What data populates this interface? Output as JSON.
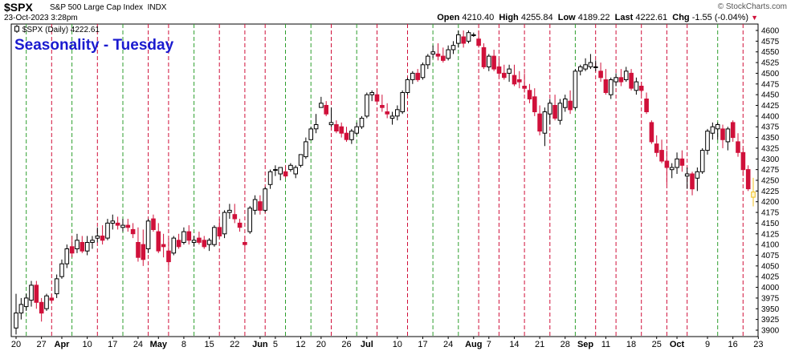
{
  "header": {
    "ticker": "$SPX",
    "description": "S&P 500 Large Cap Index",
    "exchange": "INDX",
    "timestamp": "23-Oct-2023 3:28pm",
    "copyright": "© StockCharts.com",
    "open_label": "Open",
    "open": "4210.40",
    "high_label": "High",
    "high": "4255.84",
    "low_label": "Low",
    "low": "4189.22",
    "last_label": "Last",
    "last": "4222.61",
    "chg_label": "Chg",
    "chg": "-1.55 (-0.04%)"
  },
  "legend": "$SPX (Daily) 4222.61",
  "overlay_title": "Seasonality - Tuesday",
  "colors": {
    "up": "#000000",
    "down": "#d0103a",
    "today": "#f0c020",
    "green_line": "#2e9e2e",
    "red_line": "#d0103a"
  },
  "chart_data": {
    "type": "candlestick",
    "y_axis": {
      "ticks": [
        3900,
        3925,
        3950,
        3975,
        4000,
        4025,
        4050,
        4075,
        4100,
        4125,
        4150,
        4175,
        4200,
        4225,
        4250,
        4275,
        4300,
        4325,
        4350,
        4375,
        4400,
        4425,
        4450,
        4475,
        4500,
        4525,
        4550,
        4575,
        4600
      ],
      "range": [
        3885,
        4615
      ]
    },
    "x_labels": [
      {
        "i": 0,
        "text": "20"
      },
      {
        "i": 5,
        "text": "27"
      },
      {
        "i": 9,
        "text": "Apr",
        "bold": true
      },
      {
        "i": 14,
        "text": "10"
      },
      {
        "i": 19,
        "text": "17"
      },
      {
        "i": 24,
        "text": "24"
      },
      {
        "i": 28,
        "text": "May",
        "bold": true
      },
      {
        "i": 33,
        "text": "8"
      },
      {
        "i": 38,
        "text": "15"
      },
      {
        "i": 43,
        "text": "22"
      },
      {
        "i": 48,
        "text": "Jun",
        "bold": true
      },
      {
        "i": 51,
        "text": "5"
      },
      {
        "i": 56,
        "text": "12"
      },
      {
        "i": 60,
        "text": "20"
      },
      {
        "i": 65,
        "text": "26"
      },
      {
        "i": 69,
        "text": "Jul",
        "bold": true
      },
      {
        "i": 75,
        "text": "10"
      },
      {
        "i": 80,
        "text": "17"
      },
      {
        "i": 85,
        "text": "24"
      },
      {
        "i": 90,
        "text": "Aug",
        "bold": true
      },
      {
        "i": 93,
        "text": "7"
      },
      {
        "i": 98,
        "text": "14"
      },
      {
        "i": 103,
        "text": "21"
      },
      {
        "i": 108,
        "text": "28"
      },
      {
        "i": 112,
        "text": "Sep",
        "bold": true
      },
      {
        "i": 116,
        "text": "11"
      },
      {
        "i": 121,
        "text": "18"
      },
      {
        "i": 126,
        "text": "25"
      },
      {
        "i": 130,
        "text": "Oct",
        "bold": true
      },
      {
        "i": 136,
        "text": "9"
      },
      {
        "i": 141,
        "text": "16"
      },
      {
        "i": 146,
        "text": "23"
      }
    ],
    "tuesday_markers": [
      {
        "i": 2,
        "color": "green"
      },
      {
        "i": 7,
        "color": "red"
      },
      {
        "i": 11,
        "color": "green"
      },
      {
        "i": 16,
        "color": "red"
      },
      {
        "i": 21,
        "color": "green"
      },
      {
        "i": 26,
        "color": "red"
      },
      {
        "i": 30,
        "color": "red"
      },
      {
        "i": 35,
        "color": "green"
      },
      {
        "i": 40,
        "color": "red"
      },
      {
        "i": 45,
        "color": "red"
      },
      {
        "i": 49,
        "color": "red"
      },
      {
        "i": 53,
        "color": "green"
      },
      {
        "i": 58,
        "color": "green"
      },
      {
        "i": 62,
        "color": "red"
      },
      {
        "i": 67,
        "color": "green"
      },
      {
        "i": 71,
        "color": "red"
      },
      {
        "i": 77,
        "color": "red"
      },
      {
        "i": 82,
        "color": "green"
      },
      {
        "i": 87,
        "color": "green"
      },
      {
        "i": 91,
        "color": "red"
      },
      {
        "i": 95,
        "color": "red"
      },
      {
        "i": 100,
        "color": "red"
      },
      {
        "i": 105,
        "color": "red"
      },
      {
        "i": 110,
        "color": "green"
      },
      {
        "i": 114,
        "color": "red"
      },
      {
        "i": 118,
        "color": "red"
      },
      {
        "i": 123,
        "color": "red"
      },
      {
        "i": 128,
        "color": "red"
      },
      {
        "i": 132,
        "color": "red"
      },
      {
        "i": 138,
        "color": "green"
      },
      {
        "i": 143,
        "color": "red"
      }
    ],
    "ohlc": [
      [
        3905,
        3985,
        3890,
        3940
      ],
      [
        3940,
        3975,
        3925,
        3960
      ],
      [
        3955,
        3985,
        3945,
        3975
      ],
      [
        3970,
        4015,
        3955,
        4005
      ],
      [
        4005,
        4015,
        3950,
        3965
      ],
      [
        3965,
        3975,
        3920,
        3940
      ],
      [
        3950,
        3985,
        3945,
        3980
      ],
      [
        3975,
        3985,
        3965,
        3970
      ],
      [
        3985,
        4030,
        3975,
        4020
      ],
      [
        4025,
        4065,
        4020,
        4055
      ],
      [
        4055,
        4100,
        4045,
        4090
      ],
      [
        4095,
        4120,
        4070,
        4080
      ],
      [
        4090,
        4125,
        4080,
        4110
      ],
      [
        4105,
        4120,
        4080,
        4085
      ],
      [
        4085,
        4120,
        4075,
        4105
      ],
      [
        4105,
        4120,
        4090,
        4110
      ],
      [
        4115,
        4140,
        4105,
        4120
      ],
      [
        4120,
        4145,
        4100,
        4110
      ],
      [
        4115,
        4160,
        4110,
        4150
      ],
      [
        4150,
        4170,
        4135,
        4155
      ],
      [
        4150,
        4165,
        4135,
        4145
      ],
      [
        4140,
        4160,
        4130,
        4145
      ],
      [
        4145,
        4160,
        4130,
        4140
      ],
      [
        4135,
        4150,
        4115,
        4125
      ],
      [
        4105,
        4140,
        4060,
        4070
      ],
      [
        4100,
        4135,
        4050,
        4065
      ],
      [
        4090,
        4160,
        4080,
        4155
      ],
      [
        4160,
        4170,
        4130,
        4135
      ],
      [
        4130,
        4150,
        4080,
        4085
      ],
      [
        4100,
        4125,
        4070,
        4095
      ],
      [
        4085,
        4115,
        4045,
        4060
      ],
      [
        4080,
        4120,
        4075,
        4115
      ],
      [
        4110,
        4125,
        4090,
        4095
      ],
      [
        4105,
        4140,
        4100,
        4130
      ],
      [
        4130,
        4145,
        4100,
        4110
      ],
      [
        4105,
        4120,
        4095,
        4110
      ],
      [
        4115,
        4130,
        4100,
        4105
      ],
      [
        4110,
        4120,
        4090,
        4095
      ],
      [
        4100,
        4115,
        4085,
        4110
      ],
      [
        4100,
        4145,
        4095,
        4140
      ],
      [
        4140,
        4160,
        4115,
        4120
      ],
      [
        4125,
        4180,
        4115,
        4175
      ],
      [
        4175,
        4195,
        4160,
        4180
      ],
      [
        4170,
        4195,
        4150,
        4160
      ],
      [
        4150,
        4160,
        4130,
        4140
      ],
      [
        4105,
        4120,
        4090,
        4100
      ],
      [
        4130,
        4190,
        4125,
        4185
      ],
      [
        4180,
        4215,
        4170,
        4205
      ],
      [
        4200,
        4215,
        4170,
        4180
      ],
      [
        4180,
        4235,
        4175,
        4230
      ],
      [
        4240,
        4275,
        4230,
        4270
      ],
      [
        4275,
        4285,
        4260,
        4275
      ],
      [
        4265,
        4280,
        4250,
        4280
      ],
      [
        4270,
        4285,
        4255,
        4260
      ],
      [
        4275,
        4290,
        4270,
        4285
      ],
      [
        4265,
        4285,
        4255,
        4280
      ],
      [
        4285,
        4310,
        4280,
        4310
      ],
      [
        4305,
        4350,
        4300,
        4340
      ],
      [
        4345,
        4375,
        4345,
        4370
      ],
      [
        4370,
        4405,
        4360,
        4380
      ],
      [
        4420,
        4445,
        4420,
        4430
      ],
      [
        4425,
        4435,
        4400,
        4405
      ],
      [
        4380,
        4420,
        4375,
        4385
      ],
      [
        4380,
        4390,
        4360,
        4365
      ],
      [
        4375,
        4385,
        4350,
        4360
      ],
      [
        4360,
        4375,
        4340,
        4345
      ],
      [
        4345,
        4370,
        4335,
        4365
      ],
      [
        4360,
        4385,
        4355,
        4375
      ],
      [
        4375,
        4400,
        4370,
        4395
      ],
      [
        4400,
        4455,
        4395,
        4450
      ],
      [
        4450,
        4460,
        4435,
        4455
      ],
      [
        4450,
        4465,
        4430,
        4435
      ],
      [
        4425,
        4450,
        4410,
        4420
      ],
      [
        4410,
        4430,
        4395,
        4405
      ],
      [
        4395,
        4410,
        4380,
        4400
      ],
      [
        4400,
        4425,
        4390,
        4415
      ],
      [
        4410,
        4460,
        4405,
        4455
      ],
      [
        4455,
        4490,
        4450,
        4485
      ],
      [
        4485,
        4505,
        4475,
        4500
      ],
      [
        4500,
        4510,
        4480,
        4485
      ],
      [
        4490,
        4525,
        4485,
        4520
      ],
      [
        4520,
        4545,
        4510,
        4540
      ],
      [
        4545,
        4565,
        4535,
        4550
      ],
      [
        4545,
        4570,
        4530,
        4540
      ],
      [
        4540,
        4560,
        4525,
        4530
      ],
      [
        4535,
        4565,
        4530,
        4555
      ],
      [
        4555,
        4575,
        4545,
        4565
      ],
      [
        4570,
        4600,
        4560,
        4590
      ],
      [
        4585,
        4600,
        4560,
        4570
      ],
      [
        4575,
        4600,
        4570,
        4595
      ],
      [
        4590,
        4595,
        4585,
        4590
      ],
      [
        4580,
        4600,
        4560,
        4565
      ],
      [
        4560,
        4570,
        4510,
        4515
      ],
      [
        4515,
        4545,
        4505,
        4540
      ],
      [
        4540,
        4555,
        4505,
        4510
      ],
      [
        4515,
        4535,
        4490,
        4500
      ],
      [
        4500,
        4520,
        4485,
        4490
      ],
      [
        4500,
        4520,
        4480,
        4510
      ],
      [
        4495,
        4520,
        4470,
        4475
      ],
      [
        4485,
        4505,
        4465,
        4480
      ],
      [
        4470,
        4500,
        4455,
        4465
      ],
      [
        4460,
        4475,
        4430,
        4440
      ],
      [
        4445,
        4465,
        4400,
        4410
      ],
      [
        4405,
        4425,
        4355,
        4365
      ],
      [
        4360,
        4420,
        4330,
        4410
      ],
      [
        4405,
        4440,
        4380,
        4430
      ],
      [
        4425,
        4450,
        4390,
        4395
      ],
      [
        4390,
        4440,
        4380,
        4430
      ],
      [
        4420,
        4450,
        4410,
        4440
      ],
      [
        4435,
        4460,
        4405,
        4415
      ],
      [
        4420,
        4510,
        4415,
        4505
      ],
      [
        4505,
        4520,
        4495,
        4515
      ],
      [
        4510,
        4535,
        4505,
        4520
      ],
      [
        4515,
        4545,
        4510,
        4525
      ],
      [
        4515,
        4530,
        4505,
        4515
      ],
      [
        4505,
        4525,
        4480,
        4490
      ],
      [
        4485,
        4510,
        4450,
        4455
      ],
      [
        4450,
        4490,
        4440,
        4485
      ],
      [
        4480,
        4500,
        4470,
        4490
      ],
      [
        4490,
        4510,
        4470,
        4480
      ],
      [
        4485,
        4515,
        4480,
        4505
      ],
      [
        4500,
        4510,
        4460,
        4465
      ],
      [
        4460,
        4490,
        4450,
        4480
      ],
      [
        4470,
        4480,
        4450,
        4460
      ],
      [
        4440,
        4455,
        4405,
        4410
      ],
      [
        4385,
        4390,
        4335,
        4340
      ],
      [
        4335,
        4355,
        4305,
        4315
      ],
      [
        4320,
        4345,
        4290,
        4295
      ],
      [
        4295,
        4320,
        4240,
        4280
      ],
      [
        4275,
        4290,
        4255,
        4280
      ],
      [
        4280,
        4315,
        4265,
        4300
      ],
      [
        4300,
        4320,
        4270,
        4285
      ],
      [
        4260,
        4280,
        4230,
        4265
      ],
      [
        4265,
        4270,
        4215,
        4230
      ],
      [
        4255,
        4280,
        4225,
        4270
      ],
      [
        4270,
        4325,
        4265,
        4320
      ],
      [
        4320,
        4370,
        4310,
        4365
      ],
      [
        4360,
        4385,
        4345,
        4375
      ],
      [
        4370,
        4385,
        4345,
        4380
      ],
      [
        4370,
        4380,
        4325,
        4345
      ],
      [
        4340,
        4375,
        4320,
        4370
      ],
      [
        4385,
        4390,
        4340,
        4350
      ],
      [
        4340,
        4360,
        4305,
        4315
      ],
      [
        4315,
        4325,
        4260,
        4275
      ],
      [
        4275,
        4285,
        4225,
        4230
      ],
      [
        4210.4,
        4255.84,
        4189.22,
        4222.61
      ]
    ]
  }
}
